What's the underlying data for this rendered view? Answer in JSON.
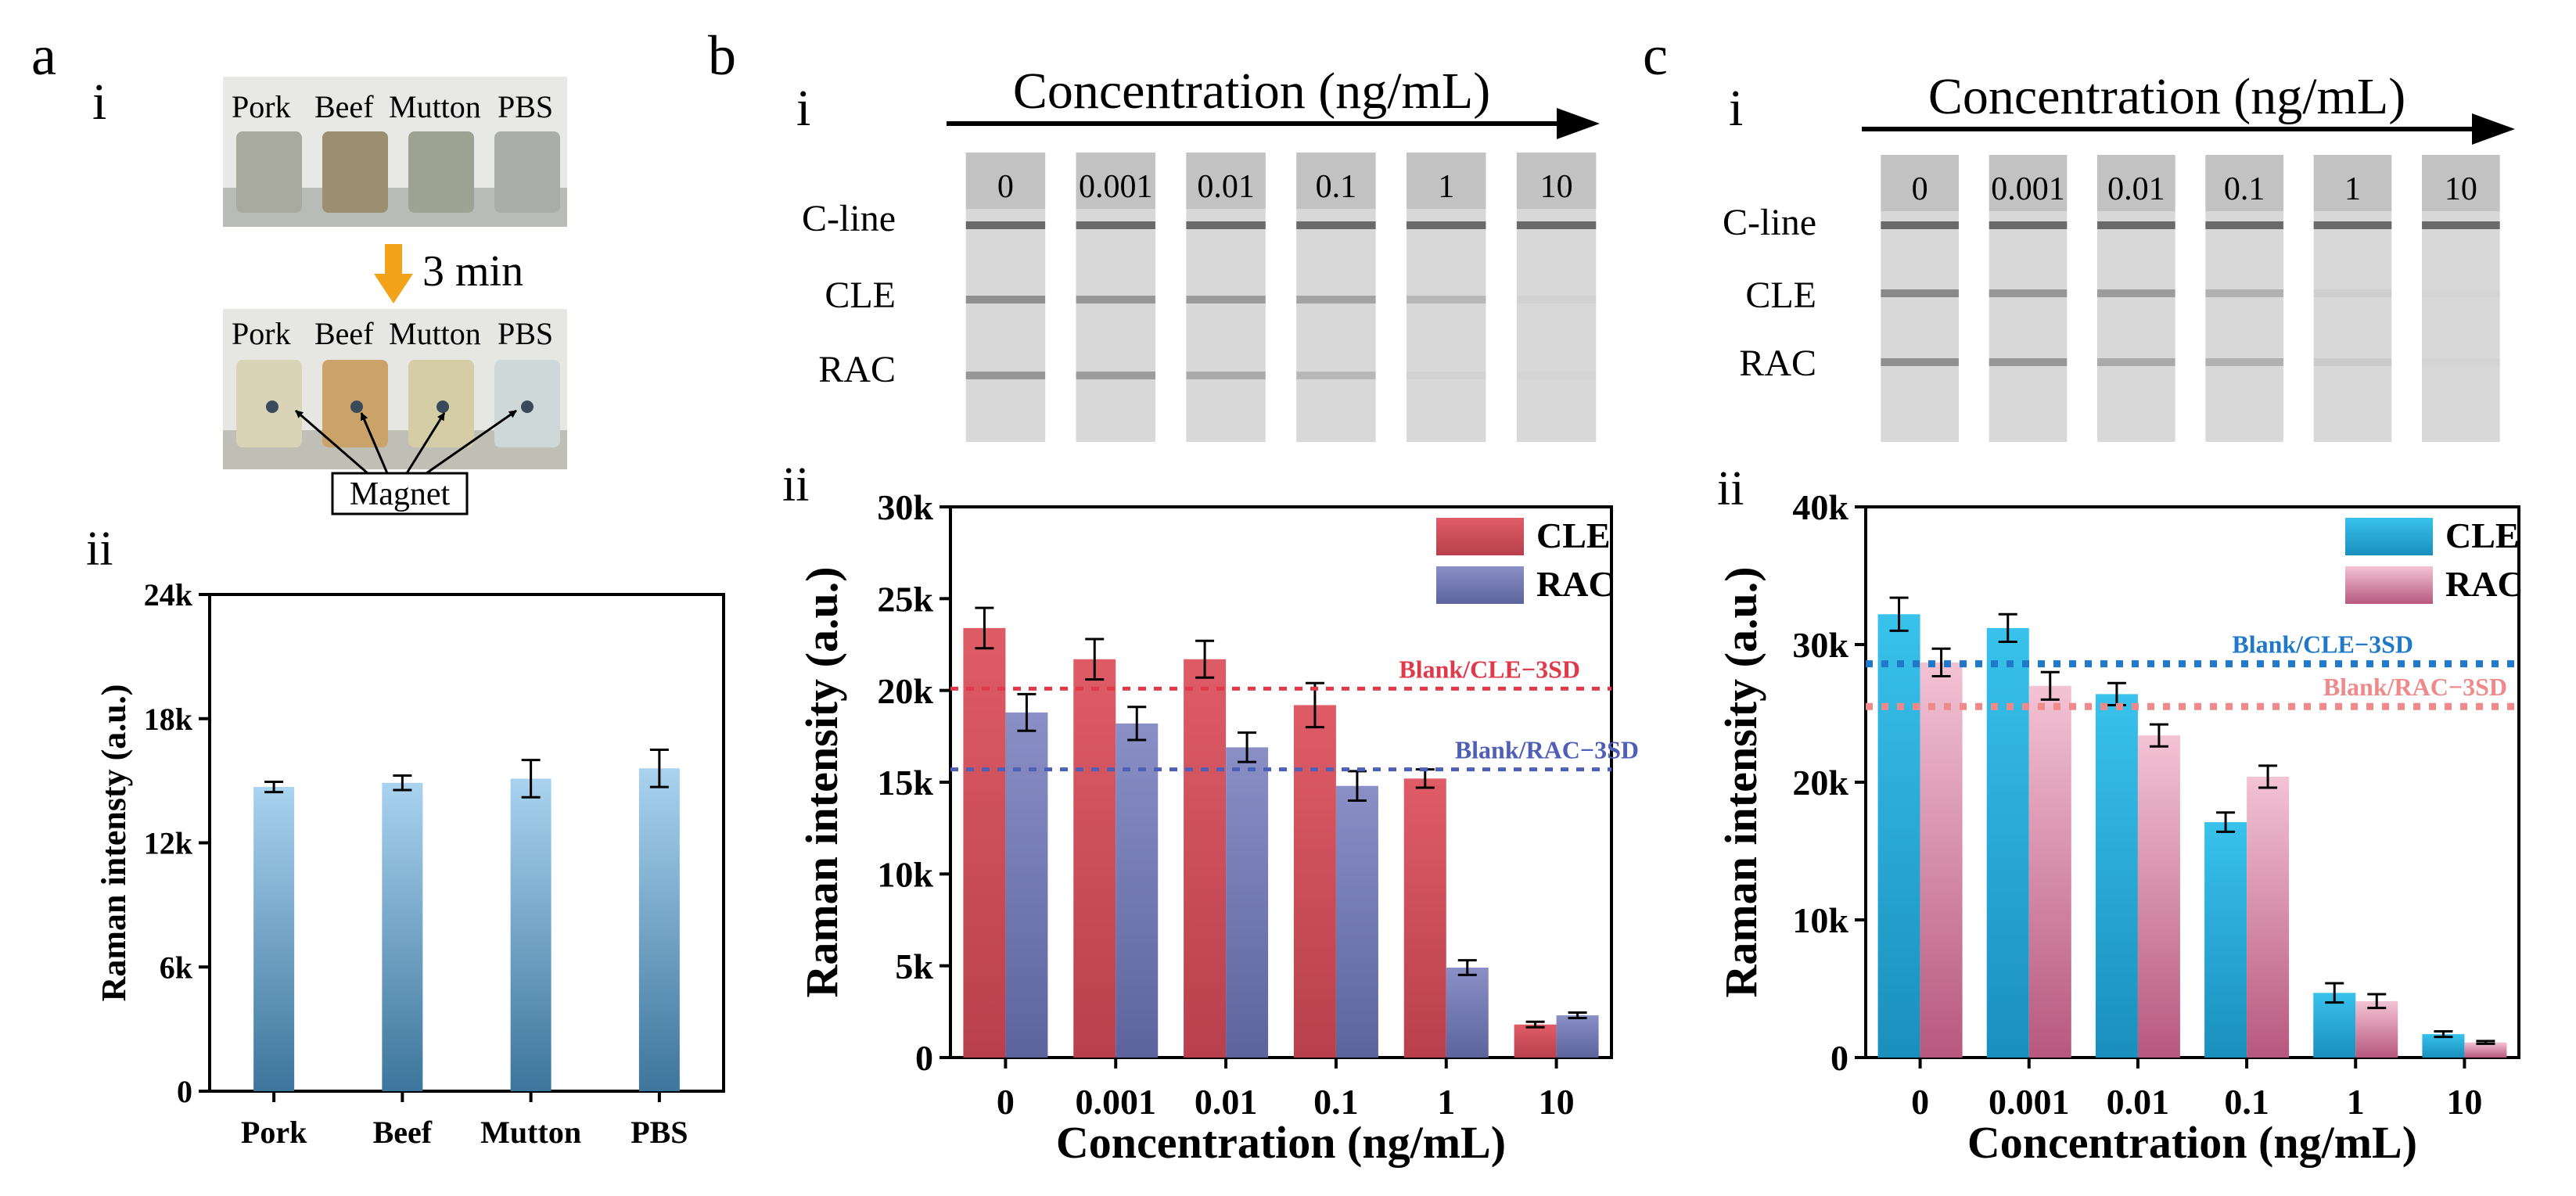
{
  "colors": {
    "cle_b": "#d9545f",
    "rac_b": "#7a80b8",
    "cle_c": "#2bb3df",
    "rac_c": "#ecb2c6",
    "a_top": "#a9d3ef",
    "a_bottom": "#3d759c",
    "blank_cle_b": "#e03a4a",
    "blank_rac_b": "#4f5fb5",
    "blank_cle_c": "#1f78c8",
    "blank_rac_c": "#f08a8a"
  },
  "panel_a": {
    "label": "a",
    "sub_i": "i",
    "sub_ii": "ii",
    "photo_labels": [
      "Pork",
      "Beef",
      "Mutton",
      "PBS"
    ],
    "time": "3 min",
    "magnet": "Magnet"
  },
  "panel_b": {
    "label": "b",
    "sub_i": "i",
    "sub_ii": "ii",
    "strip_title": "Concentration (ng/mL)",
    "row_labels": [
      "C-line",
      "CLE",
      "RAC"
    ],
    "strip_concs": [
      "0",
      "0.001",
      "0.01",
      "0.1",
      "1",
      "10"
    ]
  },
  "panel_c": {
    "label": "c",
    "sub_i": "i",
    "sub_ii": "ii",
    "strip_title": "Concentration (ng/mL)",
    "row_labels": [
      "C-line",
      "CLE",
      "RAC"
    ],
    "strip_concs": [
      "0",
      "0.001",
      "0.01",
      "0.1",
      "1",
      "10"
    ]
  },
  "chart_data": [
    {
      "id": "a",
      "type": "bar",
      "categories": [
        "Pork",
        "Beef",
        "Mutton",
        "PBS"
      ],
      "values": [
        14700,
        14900,
        15100,
        15600
      ],
      "errors": [
        250,
        350,
        900,
        900
      ],
      "ylabel": "Raman intensty (a.u.)",
      "xlabel": "",
      "ylim": [
        0,
        24000
      ],
      "yticks": [
        0,
        6000,
        12000,
        18000,
        24000
      ],
      "ytick_labels": [
        "0",
        "6k",
        "12k",
        "18k",
        "24k"
      ]
    },
    {
      "id": "b",
      "type": "bar",
      "categories": [
        "0",
        "0.001",
        "0.01",
        "0.1",
        "1",
        "10"
      ],
      "series": [
        {
          "name": "CLE",
          "values": [
            23400,
            21700,
            21700,
            19200,
            15200,
            1800
          ],
          "errors": [
            1100,
            1100,
            1000,
            1200,
            500,
            150
          ]
        },
        {
          "name": "RAC",
          "values": [
            18800,
            18200,
            16900,
            14800,
            4900,
            2300
          ],
          "errors": [
            1000,
            900,
            800,
            800,
            400,
            150
          ]
        }
      ],
      "thresholds": [
        {
          "label": "Blank/CLE−3SD",
          "value": 20100
        },
        {
          "label": "Blank/RAC−3SD",
          "value": 15700
        }
      ],
      "ylabel": "Raman intensity (a.u.)",
      "xlabel": "Concentration (ng/mL)",
      "ylim": [
        0,
        30000
      ],
      "yticks": [
        0,
        5000,
        10000,
        15000,
        20000,
        25000,
        30000
      ],
      "ytick_labels": [
        "0",
        "5k",
        "10k",
        "15k",
        "20k",
        "25k",
        "30k"
      ]
    },
    {
      "id": "c",
      "type": "bar",
      "categories": [
        "0",
        "0.001",
        "0.01",
        "0.1",
        "1",
        "10"
      ],
      "series": [
        {
          "name": "CLE",
          "values": [
            32200,
            31200,
            26400,
            17100,
            4700,
            1700
          ],
          "errors": [
            1200,
            1000,
            800,
            700,
            700,
            200
          ]
        },
        {
          "name": "RAC",
          "values": [
            28700,
            27000,
            23400,
            20400,
            4100,
            1100
          ],
          "errors": [
            1000,
            1000,
            800,
            800,
            500,
            100
          ]
        }
      ],
      "thresholds": [
        {
          "label": "Blank/CLE−3SD",
          "value": 28600
        },
        {
          "label": "Blank/RAC−3SD",
          "value": 25500
        }
      ],
      "ylabel": "Raman intensity (a.u.)",
      "xlabel": "Concentration (ng/mL)",
      "ylim": [
        0,
        40000
      ],
      "yticks": [
        0,
        10000,
        20000,
        30000,
        40000
      ],
      "ytick_labels": [
        "0",
        "10k",
        "20k",
        "30k",
        "40k"
      ]
    }
  ]
}
